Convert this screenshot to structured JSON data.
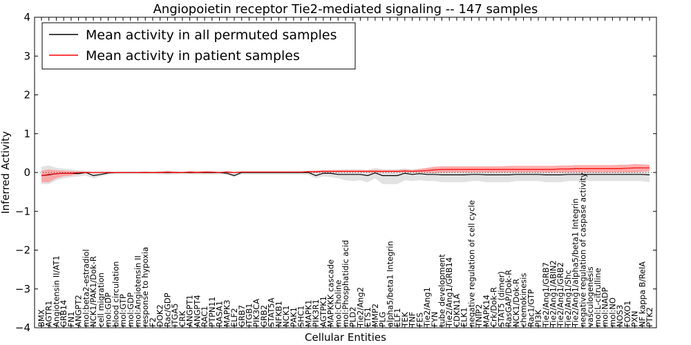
{
  "chart_data": {
    "type": "line",
    "title": "Angiopoietin receptor Tie2-mediated signaling -- 147 samples",
    "xlabel": "Cellular Entities",
    "ylabel": "Inferred Activity",
    "ylim": [
      -4,
      4
    ],
    "yticks": [
      "4",
      "3",
      "2",
      "1",
      "0",
      "−1",
      "−2",
      "−3",
      "−4"
    ],
    "legend_position": "top-left",
    "categories": [
      "BMX",
      "AGTR1",
      "Angiotensin II/AT1",
      "GRB14",
      "FN1",
      "ANGPT2",
      "mol:beta2-estradiol",
      "NCK1/PAK1/Dok-R",
      "cell migration",
      "mol:GDP",
      "blood circulation",
      "mol:GTP",
      "mol:GDP",
      "mol:Angiotensin II",
      "response to hypoxia",
      "F2",
      "DOK2",
      "Rac/GDP",
      "ITGA5",
      "CRK",
      "ANGPT1",
      "ANGPT4",
      "RAC1",
      "PTPN11",
      "RASA1",
      "MAPK3",
      "ELF2",
      "GRB7",
      "ITGB1",
      "PIK3CA",
      "GRB2",
      "STAT5A",
      "NFKB1",
      "NCK1",
      "PAK1",
      "SHC1",
      "MAPK1",
      "PIK3R1",
      "AGTPK1",
      "MAPKKK cascade",
      "mol:Choline",
      "mol:Phosphatidic acid",
      "PLD2",
      "Tie2/Ang2",
      "ETS1",
      "MMP2",
      "PLG",
      "alpha5/beta1 Integrin",
      "ELF1",
      "TEK",
      "TNF",
      "FES",
      "Tie2/Ang1",
      "FYN",
      "tube development",
      "Tie2/Ang1/GRB14",
      "CDKN1A",
      "ELK1",
      "negative regulation of cell cycle",
      "TNIP2",
      "MAPK14",
      "Crk/Dok-R",
      "STAT5 (dimer)",
      "RasGAP/Dok-R",
      "NCK1/Dok-R",
      "chemokinesis",
      "Rac1/GTP",
      "PI3K",
      "Tie2/Ang1/GRB7",
      "Tie2/Ang1/ABIN2",
      "Tie2/Ang1/GRB2",
      "Tie2/Ang1/Shc",
      "Tie2/Ang1/alpha5/beta1 Integrin",
      "negative regulation of caspase activity",
      "vasculogenesis",
      "mol:L-citrulline",
      "mol:NADP",
      "mol:NO",
      "NOS3",
      "FOXO1",
      "PXN",
      "NF kappa B/RelA",
      "PTK2"
    ],
    "series": [
      {
        "name": "Mean activity in all permuted samples",
        "color": "#000000",
        "values": [
          -0.08,
          -0.06,
          -0.03,
          -0.02,
          -0.02,
          -0.03,
          0.0,
          -0.08,
          -0.05,
          -0.01,
          0.0,
          0.0,
          0.0,
          0.0,
          0.0,
          0.0,
          0.0,
          0.0,
          0.0,
          0.0,
          0.0,
          0.0,
          0.0,
          0.0,
          0.0,
          -0.02,
          -0.08,
          0.0,
          0.0,
          0.0,
          0.0,
          0.0,
          0.0,
          0.0,
          0.0,
          0.0,
          0.0,
          -0.08,
          -0.02,
          -0.02,
          -0.05,
          -0.05,
          -0.05,
          -0.05,
          -0.08,
          -0.01,
          -0.08,
          -0.08,
          -0.08,
          -0.02,
          -0.05,
          -0.03,
          -0.05,
          -0.05,
          -0.06,
          -0.06,
          -0.06,
          -0.06,
          -0.05,
          -0.05,
          -0.06,
          -0.06,
          -0.06,
          -0.06,
          -0.05,
          -0.05,
          -0.05,
          -0.05,
          -0.06,
          -0.06,
          -0.06,
          -0.05,
          -0.05,
          -0.05,
          -0.05,
          -0.05,
          -0.05,
          -0.05,
          -0.05,
          -0.05,
          -0.05,
          -0.05,
          -0.06
        ],
        "band_upper": [
          0.15,
          0.18,
          0.12,
          0.1,
          0.08,
          0.06,
          0.05,
          0.02,
          0.03,
          0.03,
          0.02,
          0.02,
          0.02,
          0.02,
          0.03,
          0.02,
          0.04,
          0.05,
          0.03,
          0.02,
          0.04,
          0.03,
          0.04,
          0.03,
          0.02,
          0.04,
          0.02,
          0.03,
          0.03,
          0.03,
          0.03,
          0.03,
          0.03,
          0.03,
          0.03,
          0.03,
          0.05,
          0.04,
          0.05,
          0.06,
          0.07,
          0.08,
          0.08,
          0.08,
          0.06,
          0.12,
          0.08,
          0.08,
          0.08,
          0.1,
          0.08,
          0.1,
          0.1,
          0.12,
          0.1,
          0.1,
          0.1,
          0.1,
          0.1,
          0.1,
          0.1,
          0.1,
          0.1,
          0.1,
          0.1,
          0.1,
          0.1,
          0.1,
          0.1,
          0.1,
          0.1,
          0.1,
          0.1,
          0.1,
          0.1,
          0.1,
          0.1,
          0.1,
          0.1,
          0.1,
          0.1,
          0.1,
          0.1
        ],
        "band_lower": [
          -0.3,
          -0.3,
          -0.2,
          -0.15,
          -0.12,
          -0.1,
          -0.08,
          -0.15,
          -0.1,
          -0.06,
          -0.04,
          -0.04,
          -0.04,
          -0.04,
          -0.04,
          -0.04,
          -0.05,
          -0.06,
          -0.05,
          -0.04,
          -0.05,
          -0.05,
          -0.05,
          -0.05,
          -0.05,
          -0.06,
          -0.12,
          -0.05,
          -0.05,
          -0.05,
          -0.05,
          -0.05,
          -0.05,
          -0.05,
          -0.05,
          -0.05,
          -0.06,
          -0.15,
          -0.1,
          -0.12,
          -0.15,
          -0.2,
          -0.22,
          -0.2,
          -0.25,
          -0.15,
          -0.3,
          -0.3,
          -0.3,
          -0.2,
          -0.22,
          -0.2,
          -0.22,
          -0.22,
          -0.25,
          -0.25,
          -0.25,
          -0.25,
          -0.22,
          -0.22,
          -0.25,
          -0.25,
          -0.25,
          -0.25,
          -0.22,
          -0.22,
          -0.22,
          -0.22,
          -0.25,
          -0.25,
          -0.25,
          -0.22,
          -0.22,
          -0.22,
          -0.22,
          -0.22,
          -0.22,
          -0.22,
          -0.22,
          -0.22,
          -0.22,
          -0.22,
          -0.25
        ]
      },
      {
        "name": "Mean activity in patient samples",
        "color": "#ff0000",
        "values": [
          -0.08,
          -0.05,
          -0.03,
          -0.02,
          -0.02,
          0.0,
          0.0,
          0.0,
          0.0,
          0.0,
          0.0,
          0.0,
          0.0,
          0.0,
          0.0,
          0.0,
          0.0,
          0.01,
          0.0,
          0.0,
          0.01,
          0.0,
          0.01,
          0.01,
          0.0,
          0.01,
          0.0,
          0.01,
          0.01,
          0.01,
          0.01,
          0.01,
          0.01,
          0.01,
          0.01,
          0.01,
          0.02,
          0.02,
          0.03,
          0.03,
          0.03,
          0.03,
          0.03,
          0.03,
          0.03,
          0.03,
          0.03,
          0.03,
          0.03,
          0.04,
          0.03,
          0.04,
          0.05,
          0.07,
          0.08,
          0.08,
          0.08,
          0.08,
          0.08,
          0.08,
          0.08,
          0.08,
          0.08,
          0.08,
          0.08,
          0.08,
          0.08,
          0.08,
          0.08,
          0.08,
          0.09,
          0.09,
          0.1,
          0.1,
          0.1,
          0.1,
          0.1,
          0.1,
          0.1,
          0.11,
          0.12,
          0.12,
          0.12
        ],
        "band_upper": [
          0.05,
          0.08,
          0.06,
          0.05,
          0.04,
          0.02,
          0.02,
          0.01,
          0.01,
          0.01,
          0.01,
          0.01,
          0.01,
          0.01,
          0.02,
          0.01,
          0.02,
          0.03,
          0.02,
          0.01,
          0.03,
          0.02,
          0.03,
          0.02,
          0.01,
          0.03,
          0.01,
          0.02,
          0.02,
          0.02,
          0.02,
          0.02,
          0.02,
          0.02,
          0.02,
          0.02,
          0.04,
          0.05,
          0.06,
          0.06,
          0.06,
          0.06,
          0.06,
          0.06,
          0.06,
          0.07,
          0.06,
          0.06,
          0.06,
          0.08,
          0.06,
          0.09,
          0.12,
          0.15,
          0.16,
          0.16,
          0.16,
          0.16,
          0.16,
          0.16,
          0.16,
          0.16,
          0.16,
          0.17,
          0.17,
          0.17,
          0.17,
          0.17,
          0.17,
          0.17,
          0.18,
          0.18,
          0.19,
          0.19,
          0.19,
          0.19,
          0.19,
          0.19,
          0.2,
          0.2,
          0.22,
          0.21,
          0.2
        ],
        "band_lower": [
          -0.25,
          -0.25,
          -0.15,
          -0.1,
          -0.08,
          -0.03,
          -0.02,
          -0.01,
          -0.01,
          -0.01,
          -0.01,
          -0.01,
          -0.01,
          -0.01,
          -0.02,
          -0.01,
          -0.02,
          -0.02,
          -0.02,
          -0.01,
          -0.02,
          -0.02,
          -0.02,
          -0.02,
          -0.01,
          -0.02,
          -0.01,
          -0.01,
          -0.01,
          -0.01,
          -0.01,
          -0.01,
          -0.01,
          -0.01,
          -0.01,
          -0.01,
          0.0,
          -0.01,
          0.0,
          0.0,
          0.0,
          0.0,
          0.0,
          0.0,
          0.0,
          -0.01,
          0.0,
          0.0,
          0.0,
          0.0,
          0.0,
          0.0,
          -0.01,
          -0.01,
          0.0,
          0.0,
          0.0,
          0.0,
          0.0,
          0.0,
          0.0,
          0.0,
          0.0,
          0.0,
          0.0,
          0.0,
          0.0,
          0.0,
          0.0,
          0.0,
          0.0,
          0.0,
          0.0,
          0.0,
          0.0,
          0.0,
          0.0,
          0.0,
          0.0,
          0.0,
          0.0,
          0.02,
          0.03
        ]
      }
    ]
  },
  "band_colors": {
    "permuted": "#d8d8d8",
    "patient": "#ff9a9a"
  }
}
